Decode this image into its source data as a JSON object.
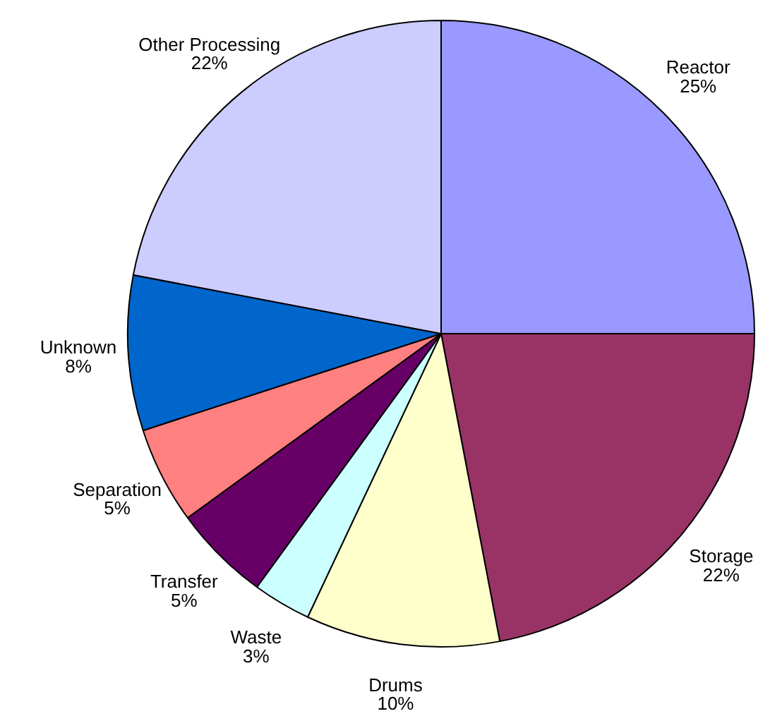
{
  "chart_data": {
    "type": "pie",
    "categories": [
      "Reactor",
      "Storage",
      "Drums",
      "Waste",
      "Transfer",
      "Separation",
      "Unknown",
      "Other Processing"
    ],
    "values": [
      25,
      22,
      10,
      3,
      5,
      5,
      8,
      22
    ],
    "value_labels": [
      "25%",
      "22%",
      "10%",
      "3%",
      "5%",
      "5%",
      "8%",
      "22%"
    ],
    "colors": [
      "#9999ff",
      "#993366",
      "#ffffcc",
      "#ccffff",
      "#660066",
      "#ff8080",
      "#0066cc",
      "#ccccff"
    ],
    "legend": false
  }
}
